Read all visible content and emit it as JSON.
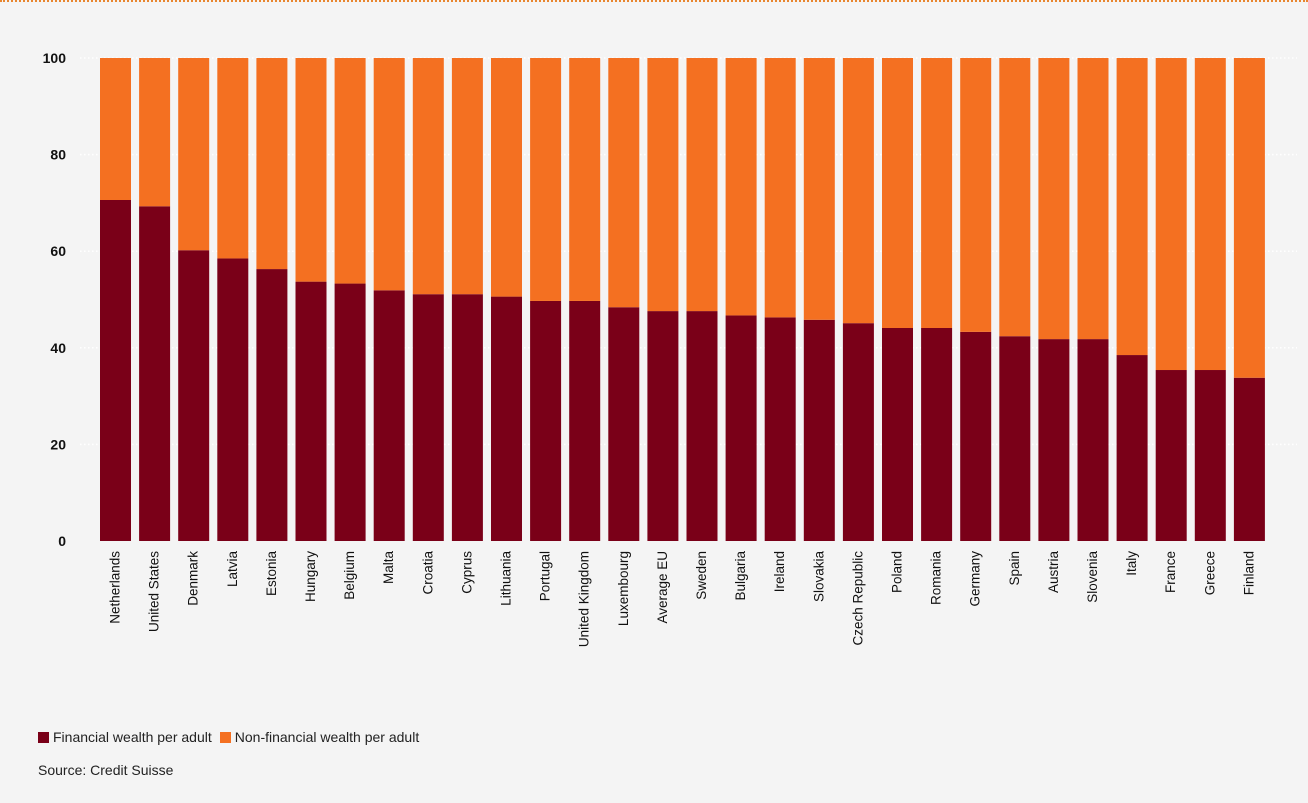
{
  "chart_data": {
    "type": "bar",
    "stacked": true,
    "categories": [
      "Netherlands",
      "United States",
      "Denmark",
      "Latvia",
      "Estonia",
      "Hungary",
      "Belgium",
      "Malta",
      "Croatia",
      "Cyprus",
      "Lithuania",
      "Portugal",
      "United Kingdom",
      "Luxembourg",
      "Average EU",
      "Sweden",
      "Bulgaria",
      "Ireland",
      "Slovakia",
      "Czech Republic",
      "Poland",
      "Romania",
      "Germany",
      "Spain",
      "Austria",
      "Slovenia",
      "Italy",
      "France",
      "Greece",
      "Finland"
    ],
    "series": [
      {
        "name": "Financial wealth per adult",
        "color": "#7a0018",
        "values": [
          70.6,
          69.3,
          60.2,
          58.5,
          56.3,
          53.7,
          53.3,
          51.9,
          51.1,
          51.1,
          50.6,
          49.7,
          49.7,
          48.4,
          47.6,
          47.6,
          46.7,
          46.3,
          45.8,
          45.1,
          44.1,
          44.1,
          43.3,
          42.4,
          41.8,
          41.8,
          38.5,
          35.4,
          35.4,
          33.8
        ]
      },
      {
        "name": "Non-financial wealth per adult",
        "color": "#f47021",
        "values": [
          29.4,
          30.7,
          39.8,
          41.5,
          43.7,
          46.3,
          46.7,
          48.1,
          48.9,
          48.9,
          49.4,
          50.3,
          50.3,
          51.6,
          52.4,
          52.4,
          53.3,
          53.7,
          54.2,
          54.9,
          55.9,
          55.9,
          56.7,
          57.6,
          58.2,
          58.2,
          61.5,
          64.6,
          64.6,
          66.2
        ]
      }
    ],
    "ylim": [
      0,
      100
    ],
    "yticks": [
      0,
      20,
      40,
      60,
      80,
      100
    ],
    "grid": true,
    "legend_position": "bottom-left",
    "source": "Source: Credit Suisse"
  }
}
